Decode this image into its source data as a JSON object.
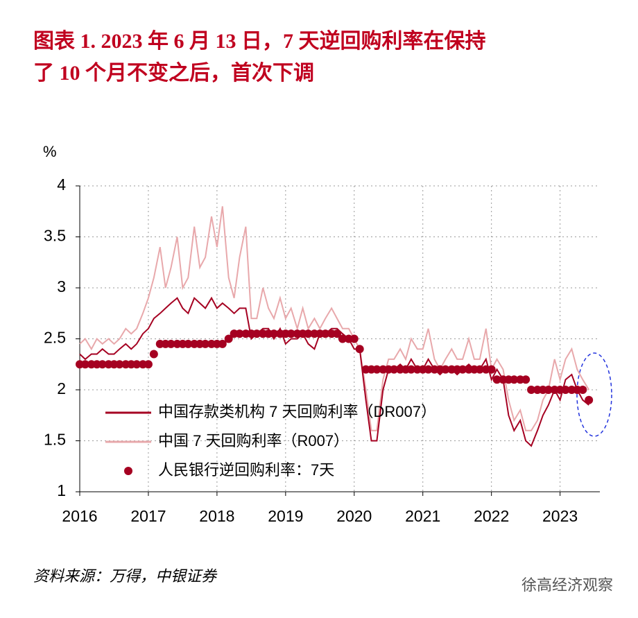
{
  "chart_data": {
    "type": "line",
    "title": [
      "图表 1.  2023 年 6 月 13 日，7 天逆回购利率在保持",
      "了 10 个月不变之后，首次下调"
    ],
    "y_unit": "%",
    "source": "资料来源：万得，中银证券",
    "watermark": "徐高经济观察",
    "x": [
      2016,
      2016.08,
      2016.17,
      2016.25,
      2016.33,
      2016.42,
      2016.5,
      2016.58,
      2016.67,
      2016.75,
      2016.83,
      2016.92,
      2017,
      2017.08,
      2017.17,
      2017.25,
      2017.33,
      2017.42,
      2017.5,
      2017.58,
      2017.67,
      2017.75,
      2017.83,
      2017.92,
      2018,
      2018.08,
      2018.17,
      2018.25,
      2018.33,
      2018.42,
      2018.5,
      2018.58,
      2018.67,
      2018.75,
      2018.83,
      2018.92,
      2019,
      2019.08,
      2019.17,
      2019.25,
      2019.33,
      2019.42,
      2019.5,
      2019.58,
      2019.67,
      2019.75,
      2019.83,
      2019.92,
      2020,
      2020.08,
      2020.17,
      2020.25,
      2020.33,
      2020.42,
      2020.5,
      2020.58,
      2020.67,
      2020.75,
      2020.83,
      2020.92,
      2021,
      2021.08,
      2021.17,
      2021.25,
      2021.33,
      2021.42,
      2021.5,
      2021.58,
      2021.67,
      2021.75,
      2021.83,
      2021.92,
      2022,
      2022.08,
      2022.17,
      2022.25,
      2022.33,
      2022.42,
      2022.5,
      2022.58,
      2022.67,
      2022.75,
      2022.83,
      2022.92,
      2023,
      2023.08,
      2023.17,
      2023.25,
      2023.33,
      2023.42
    ],
    "series": [
      {
        "name": "中国存款类机构 7 天回购利率（DR007）",
        "color": "#a50021",
        "style": "line",
        "values": [
          2.35,
          2.3,
          2.35,
          2.35,
          2.4,
          2.35,
          2.35,
          2.4,
          2.45,
          2.4,
          2.45,
          2.55,
          2.6,
          2.7,
          2.75,
          2.8,
          2.85,
          2.9,
          2.8,
          2.75,
          2.9,
          2.85,
          2.8,
          2.9,
          2.8,
          2.85,
          2.8,
          2.75,
          2.8,
          2.8,
          2.5,
          2.55,
          2.6,
          2.6,
          2.5,
          2.6,
          2.45,
          2.5,
          2.5,
          2.55,
          2.45,
          2.4,
          2.55,
          2.55,
          2.6,
          2.6,
          2.55,
          2.5,
          2.4,
          2.4,
          1.9,
          1.5,
          1.5,
          2.0,
          2.2,
          2.2,
          2.25,
          2.2,
          2.3,
          2.2,
          2.2,
          2.3,
          2.2,
          2.15,
          2.2,
          2.2,
          2.15,
          2.2,
          2.25,
          2.2,
          2.2,
          2.3,
          2.1,
          2.2,
          2.1,
          1.75,
          1.6,
          1.7,
          1.5,
          1.45,
          1.6,
          1.75,
          1.85,
          2.0,
          1.9,
          2.1,
          2.15,
          2.0,
          1.9,
          1.85
        ]
      },
      {
        "name": "中国 7 天回购利率（R007）",
        "color": "#e8a8ab",
        "style": "line",
        "values": [
          2.45,
          2.5,
          2.4,
          2.5,
          2.45,
          2.5,
          2.45,
          2.5,
          2.6,
          2.55,
          2.6,
          2.75,
          2.9,
          3.1,
          3.4,
          3.0,
          3.2,
          3.5,
          3.0,
          3.1,
          3.6,
          3.2,
          3.3,
          3.7,
          3.4,
          3.8,
          3.1,
          2.9,
          3.3,
          3.6,
          2.7,
          2.7,
          3.0,
          2.8,
          2.7,
          2.9,
          2.7,
          2.8,
          2.6,
          2.8,
          2.6,
          2.7,
          2.6,
          2.7,
          2.8,
          2.7,
          2.6,
          2.6,
          2.5,
          2.4,
          2.0,
          1.6,
          1.6,
          2.1,
          2.3,
          2.3,
          2.4,
          2.3,
          2.5,
          2.4,
          2.4,
          2.6,
          2.3,
          2.2,
          2.3,
          2.4,
          2.3,
          2.3,
          2.5,
          2.3,
          2.3,
          2.6,
          2.2,
          2.3,
          2.2,
          1.9,
          1.7,
          1.8,
          1.6,
          1.6,
          1.7,
          1.9,
          2.0,
          2.3,
          2.1,
          2.3,
          2.4,
          2.2,
          2.1,
          2.0
        ]
      },
      {
        "name": "人民银行逆回购利率：7天",
        "color": "#a50021",
        "style": "dots",
        "values": [
          2.25,
          2.25,
          2.25,
          2.25,
          2.25,
          2.25,
          2.25,
          2.25,
          2.25,
          2.25,
          2.25,
          2.25,
          2.25,
          2.35,
          2.45,
          2.45,
          2.45,
          2.45,
          2.45,
          2.45,
          2.45,
          2.45,
          2.45,
          2.45,
          2.45,
          2.45,
          2.5,
          2.55,
          2.55,
          2.55,
          2.55,
          2.55,
          2.55,
          2.55,
          2.55,
          2.55,
          2.55,
          2.55,
          2.55,
          2.55,
          2.55,
          2.55,
          2.55,
          2.55,
          2.55,
          2.55,
          2.5,
          2.5,
          2.5,
          2.4,
          2.2,
          2.2,
          2.2,
          2.2,
          2.2,
          2.2,
          2.2,
          2.2,
          2.2,
          2.2,
          2.2,
          2.2,
          2.2,
          2.2,
          2.2,
          2.2,
          2.2,
          2.2,
          2.2,
          2.2,
          2.2,
          2.2,
          2.2,
          2.1,
          2.1,
          2.1,
          2.1,
          2.1,
          2.1,
          2.0,
          2.0,
          2.0,
          2.0,
          2.0,
          2.0,
          2.0,
          2.0,
          2.0,
          2.0,
          1.9
        ]
      }
    ],
    "xlim": [
      2016,
      2023.58
    ],
    "xticks": [
      2016,
      2017,
      2018,
      2019,
      2020,
      2021,
      2022,
      2023
    ],
    "ylim": [
      1,
      4
    ],
    "yticks": [
      1,
      1.5,
      2,
      2.5,
      3,
      3.5,
      4
    ],
    "grid": true
  }
}
